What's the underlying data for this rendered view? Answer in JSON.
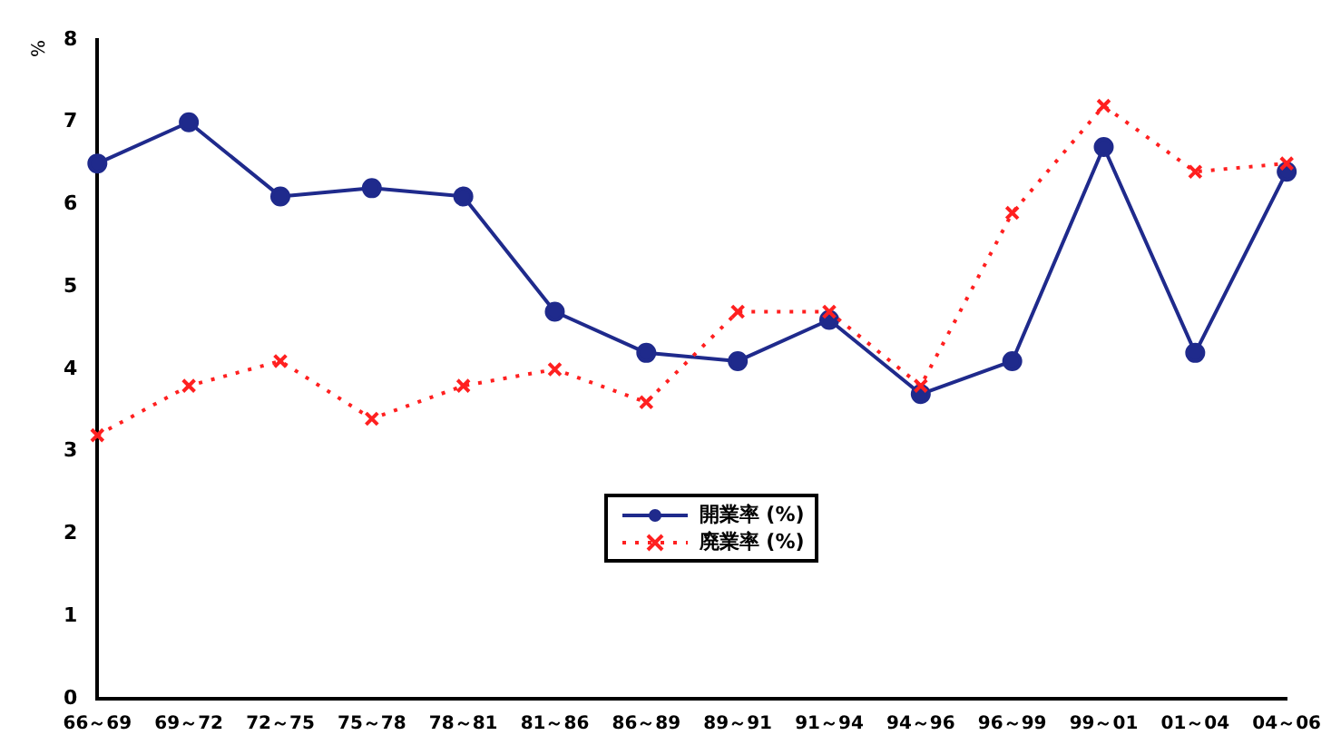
{
  "chart_data": {
    "type": "line",
    "ylabel": "%",
    "categories": [
      "66～69",
      "69～72",
      "72～75",
      "75～78",
      "78～81",
      "81～86",
      "86～89",
      "89～91",
      "91～94",
      "94～96",
      "96～99",
      "99～01",
      "01～04",
      "04～06"
    ],
    "series": [
      {
        "name": "開業率 (%)",
        "color": "#1f2a8c",
        "marker": "circle",
        "line_style": "solid",
        "values": [
          6.5,
          7.0,
          6.1,
          6.2,
          6.1,
          4.7,
          4.2,
          4.1,
          4.6,
          3.7,
          4.1,
          6.7,
          4.2,
          6.4
        ]
      },
      {
        "name": "廃業率 (%)",
        "color": "#ff2020",
        "marker": "cross",
        "line_style": "dotted",
        "values": [
          3.2,
          3.8,
          4.1,
          3.4,
          3.8,
          4.0,
          3.6,
          4.7,
          4.7,
          3.8,
          5.9,
          7.2,
          6.4,
          6.5
        ]
      }
    ],
    "ylim": [
      0,
      8
    ],
    "yticks": [
      0,
      1,
      2,
      3,
      4,
      5,
      6,
      7,
      8
    ],
    "grid": false,
    "legend": "bottom"
  }
}
